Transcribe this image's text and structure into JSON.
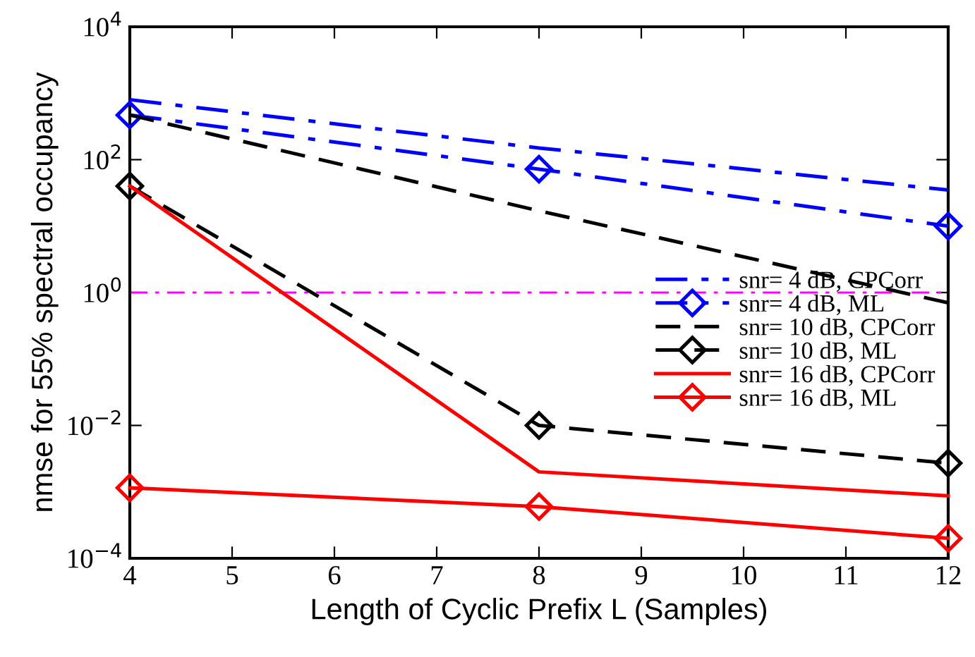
{
  "chart_data": {
    "type": "line",
    "xlabel": "Length of Cyclic Prefix L (Samples)",
    "ylabel": "nmse for 55% spectral occupancy",
    "log": "y",
    "xlim": [
      4,
      12
    ],
    "xticks": [
      4,
      5,
      6,
      7,
      8,
      9,
      10,
      11,
      12
    ],
    "ylim": [
      0.0001,
      10000
    ],
    "yticks": [
      {
        "value": 0.0001,
        "label": "10$^{−4}$"
      },
      {
        "value": 0.01,
        "label": "10$^{−2}$"
      },
      {
        "value": 1,
        "label": "10$^{0}$"
      },
      {
        "value": 100,
        "label": "10$^{2}$"
      },
      {
        "value": 10000,
        "label": "10$^{4}$"
      }
    ],
    "grid": false,
    "legend": "right",
    "x": [
      4,
      8,
      12
    ],
    "series": [
      {
        "name": "snr= 4 dB, CPCorr",
        "color": "#0000ff",
        "values": [
          800,
          150,
          35
        ],
        "line_style": "dashdot",
        "marker": "none"
      },
      {
        "name": "snr= 4 dB, ML",
        "color": "#0000ff",
        "values": [
          470,
          72,
          10
        ],
        "line_style": "dashdot",
        "marker": "diamond"
      },
      {
        "name": "snr= 10 dB, CPCorr",
        "color": "#000000",
        "values": [
          470,
          17,
          0.7
        ],
        "line_style": "dashed",
        "marker": "none"
      },
      {
        "name": "snr= 10 dB, ML",
        "color": "#000000",
        "values": [
          40,
          0.01,
          0.0027
        ],
        "line_style": "dashed",
        "marker": "diamond"
      },
      {
        "name": "snr= 16 dB, CPCorr",
        "color": "#ff0000",
        "values": [
          40,
          0.002,
          0.00087
        ],
        "line_style": "solid",
        "marker": "none"
      },
      {
        "name": "snr= 16 dB, ML",
        "color": "#ff0000",
        "values": [
          0.00115,
          0.0006,
          0.0002
        ],
        "line_style": "solid",
        "marker": "diamond"
      }
    ],
    "ref_lines": [
      {
        "axis": "y",
        "value": 1,
        "color": "#ff00ff",
        "line_style": "dashdot"
      }
    ]
  }
}
